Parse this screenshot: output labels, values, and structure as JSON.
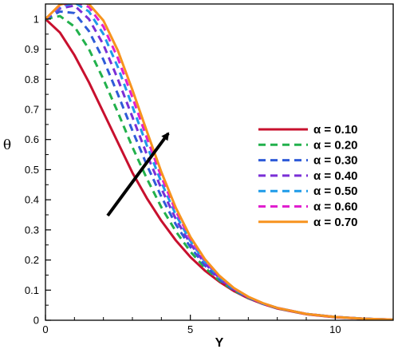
{
  "chart_data": {
    "type": "line",
    "xlabel": "Y",
    "ylabel": "θ",
    "xlim": [
      0,
      12
    ],
    "ylim": [
      0,
      1.05
    ],
    "x_ticks": [
      0,
      5,
      10
    ],
    "y_ticks": [
      0,
      0.1,
      0.2,
      0.3,
      0.4,
      0.5,
      0.6,
      0.7,
      0.8,
      0.9,
      1
    ],
    "legend_position": "middle-right",
    "grid": false,
    "annotation": "arrow indicating increasing α",
    "series": [
      {
        "name": "α = 0.10",
        "color": "#c8102e",
        "dash": "solid",
        "x": [
          0,
          0.5,
          1,
          1.5,
          2,
          2.5,
          3,
          3.5,
          4,
          4.5,
          5,
          5.5,
          6,
          6.5,
          7,
          7.5,
          8,
          9,
          10,
          11,
          12
        ],
        "y": [
          1.0,
          0.955,
          0.88,
          0.79,
          0.69,
          0.59,
          0.49,
          0.405,
          0.33,
          0.265,
          0.21,
          0.165,
          0.128,
          0.097,
          0.073,
          0.054,
          0.039,
          0.02,
          0.01,
          0.005,
          0.002
        ]
      },
      {
        "name": "α = 0.20",
        "color": "#22b14c",
        "dash": "dashed",
        "x": [
          0,
          0.5,
          1,
          1.5,
          2,
          2.5,
          3,
          3.5,
          4,
          4.5,
          5,
          5.5,
          6,
          6.5,
          7,
          7.5,
          8,
          9,
          10,
          11,
          12
        ],
        "y": [
          1.0,
          1.01,
          0.975,
          0.9,
          0.8,
          0.69,
          0.575,
          0.47,
          0.375,
          0.295,
          0.228,
          0.174,
          0.132,
          0.099,
          0.074,
          0.055,
          0.04,
          0.021,
          0.011,
          0.005,
          0.002
        ]
      },
      {
        "name": "α = 0.30",
        "color": "#2e5bd8",
        "dash": "dashed",
        "x": [
          0,
          0.5,
          1,
          1.5,
          2,
          2.5,
          3,
          3.5,
          4,
          4.5,
          5,
          5.5,
          6,
          6.5,
          7,
          7.5,
          8,
          9,
          10,
          11,
          12
        ],
        "y": [
          1.0,
          1.025,
          1.02,
          0.96,
          0.865,
          0.75,
          0.63,
          0.515,
          0.41,
          0.318,
          0.243,
          0.182,
          0.136,
          0.101,
          0.075,
          0.055,
          0.04,
          0.021,
          0.011,
          0.005,
          0.002
        ]
      },
      {
        "name": "α = 0.40",
        "color": "#7a2fd6",
        "dash": "dashed",
        "x": [
          0,
          0.5,
          1,
          1.5,
          2,
          2.5,
          3,
          3.5,
          4,
          4.5,
          5,
          5.5,
          6,
          6.5,
          7,
          7.5,
          8,
          9,
          10,
          11,
          12
        ],
        "y": [
          1.0,
          1.035,
          1.045,
          1.0,
          0.915,
          0.8,
          0.675,
          0.55,
          0.437,
          0.336,
          0.254,
          0.189,
          0.14,
          0.103,
          0.076,
          0.056,
          0.041,
          0.021,
          0.011,
          0.005,
          0.002
        ]
      },
      {
        "name": "α = 0.50",
        "color": "#1e9be8",
        "dash": "dashed",
        "x": [
          0,
          0.5,
          1,
          1.5,
          2,
          2.5,
          3,
          3.5,
          4,
          4.5,
          5,
          5.5,
          6,
          6.5,
          7,
          7.5,
          8,
          9,
          10,
          11,
          12
        ],
        "y": [
          1.0,
          1.04,
          1.055,
          1.025,
          0.95,
          0.84,
          0.71,
          0.58,
          0.458,
          0.35,
          0.263,
          0.195,
          0.143,
          0.105,
          0.077,
          0.056,
          0.041,
          0.021,
          0.011,
          0.005,
          0.002
        ]
      },
      {
        "name": "α = 0.60",
        "color": "#e01fcf",
        "dash": "dashed",
        "x": [
          0,
          0.5,
          1,
          1.5,
          2,
          2.5,
          3,
          3.5,
          4,
          4.5,
          5,
          5.5,
          6,
          6.5,
          7,
          7.5,
          8,
          9,
          10,
          11,
          12
        ],
        "y": [
          1.0,
          1.045,
          1.058,
          1.04,
          0.975,
          0.87,
          0.74,
          0.605,
          0.476,
          0.362,
          0.27,
          0.199,
          0.146,
          0.106,
          0.077,
          0.056,
          0.041,
          0.021,
          0.011,
          0.005,
          0.002
        ]
      },
      {
        "name": "α = 0.70",
        "color": "#f7931e",
        "dash": "solid",
        "x": [
          0,
          0.5,
          1,
          1.5,
          2,
          2.5,
          3,
          3.5,
          4,
          4.5,
          5,
          5.5,
          6,
          6.5,
          7,
          7.5,
          8,
          9,
          10,
          11,
          12
        ],
        "y": [
          1.0,
          1.048,
          1.06,
          1.05,
          0.995,
          0.895,
          0.765,
          0.627,
          0.492,
          0.373,
          0.277,
          0.203,
          0.148,
          0.107,
          0.078,
          0.057,
          0.041,
          0.021,
          0.011,
          0.005,
          0.002
        ]
      }
    ]
  }
}
